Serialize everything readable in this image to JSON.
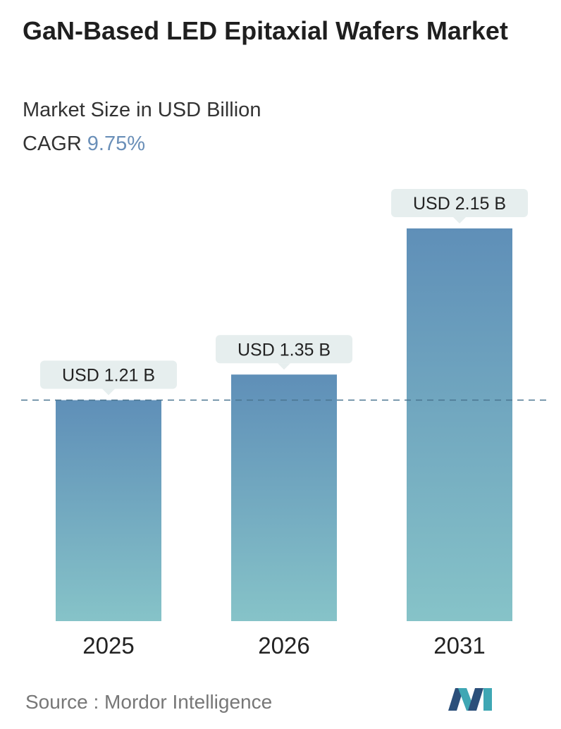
{
  "header": {
    "title": "GaN-Based LED Epitaxial Wafers Market",
    "subtitle": "Market Size in USD Billion",
    "cagr_label": "CAGR",
    "cagr_value": "9.75%"
  },
  "chart_data": {
    "type": "bar",
    "categories": [
      "2025",
      "2026",
      "2031"
    ],
    "values": [
      1.21,
      1.35,
      2.15
    ],
    "data_labels": [
      "USD 1.21 B",
      "USD 1.35 B",
      "USD 2.15 B"
    ],
    "ylabel": "",
    "xlabel": "",
    "ylim": [
      0,
      2.15
    ],
    "grid": false,
    "reference_line": 1.21,
    "colors": {
      "bar_top": "#5f8fb8",
      "bar_bottom": "#86c3c8",
      "label_bg": "#e6eeee",
      "ref_line": "#4a7590"
    }
  },
  "footer": {
    "source": "Source :  Mordor Intelligence",
    "logo_icon": "mordor-intelligence-logo-icon"
  }
}
